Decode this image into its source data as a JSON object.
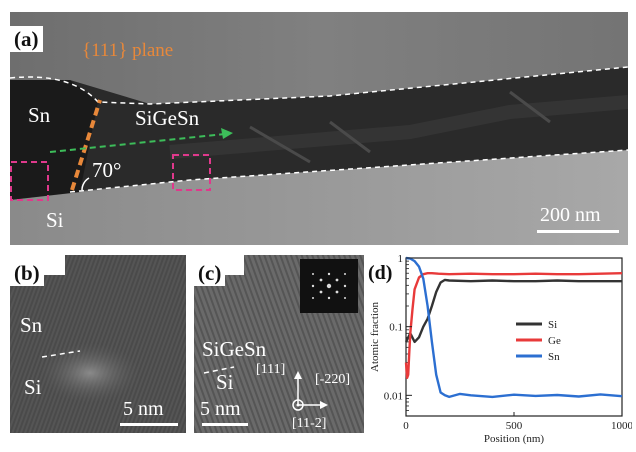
{
  "panels": {
    "a": {
      "label": "(a)",
      "plane_label": "{111} plane",
      "sn_label": "Sn",
      "sigesn_label": "SiGeSn",
      "si_label": "Si",
      "angle_label": "70°",
      "scalebar": "200 nm"
    },
    "b": {
      "label": "(b)",
      "sn_label": "Sn",
      "si_label": "Si",
      "scalebar": "5 nm"
    },
    "c": {
      "label": "(c)",
      "sigesn_label": "SiGeSn",
      "si_label": "Si",
      "scalebar": "5 nm",
      "dir_up": "[111]",
      "dir_right": "[-220]",
      "dir_out": "[11-2]"
    }
  },
  "chart_data": {
    "type": "line",
    "panel_label": "(d)",
    "xlabel": "Position (nm)",
    "ylabel": "Atomic fraction",
    "xlim": [
      0,
      1000
    ],
    "ylim": [
      0.005,
      1
    ],
    "yscale": "log",
    "x_ticks": [
      "0",
      "500",
      "1000"
    ],
    "y_ticks": [
      "1",
      "0.1",
      "0.01"
    ],
    "legend_position": "middle-right",
    "series": [
      {
        "name": "Si",
        "color": "#333333",
        "x": [
          0,
          20,
          40,
          60,
          80,
          100,
          120,
          140,
          160,
          180,
          200,
          300,
          400,
          500,
          600,
          700,
          800,
          900,
          1000
        ],
        "y": [
          0.06,
          0.08,
          0.06,
          0.07,
          0.1,
          0.13,
          0.2,
          0.32,
          0.44,
          0.48,
          0.47,
          0.46,
          0.47,
          0.46,
          0.46,
          0.47,
          0.46,
          0.46,
          0.46
        ]
      },
      {
        "name": "Ge",
        "color": "#e83a3a",
        "x": [
          0,
          5,
          10,
          15,
          20,
          30,
          40,
          60,
          80,
          100,
          120,
          150,
          200,
          300,
          400,
          500,
          600,
          700,
          800,
          900,
          1000
        ],
        "y": [
          0.03,
          0.018,
          0.02,
          0.04,
          0.08,
          0.18,
          0.35,
          0.52,
          0.58,
          0.6,
          0.6,
          0.59,
          0.58,
          0.59,
          0.58,
          0.58,
          0.59,
          0.58,
          0.58,
          0.59,
          0.6
        ]
      },
      {
        "name": "Sn",
        "color": "#2c6fd1",
        "x": [
          0,
          20,
          40,
          60,
          80,
          100,
          120,
          140,
          160,
          180,
          200,
          250,
          300,
          400,
          500,
          600,
          700,
          800,
          900,
          1000
        ],
        "y": [
          1.0,
          0.98,
          0.9,
          0.75,
          0.5,
          0.2,
          0.06,
          0.02,
          0.011,
          0.01,
          0.0095,
          0.0105,
          0.01,
          0.0095,
          0.0102,
          0.0098,
          0.0101,
          0.0096,
          0.0103,
          0.0097
        ]
      }
    ]
  }
}
